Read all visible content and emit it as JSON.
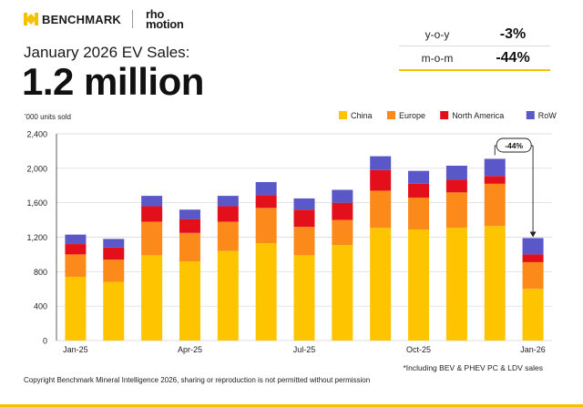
{
  "header": {
    "brand": "BENCHMARK",
    "partner_line1": "rho",
    "partner_line2": "motion"
  },
  "title": {
    "subtitle": "January 2026 EV Sales:",
    "headline": "1.2 million"
  },
  "kpis": [
    {
      "label": "y-o-y",
      "value": "-3%"
    },
    {
      "label": "m-o-m",
      "value": "-44%"
    }
  ],
  "colors": {
    "China": "#ffc400",
    "Europe": "#fb8a1a",
    "North America": "#e3101b",
    "RoW": "#5a58c8",
    "brand_yellow": "#f5c200"
  },
  "chart_data": {
    "type": "bar",
    "stacked": true,
    "title": "",
    "xlabel": "",
    "ylabel": "'000 units sold",
    "ylim": [
      0,
      2400
    ],
    "yticks": [
      0,
      400,
      800,
      1200,
      1600,
      2000,
      2400
    ],
    "ytick_labels": [
      "0",
      "400",
      "800",
      "1,200",
      "1,600",
      "2,000",
      "2,400"
    ],
    "categories": [
      "Jan-25",
      "Feb-25",
      "Mar-25",
      "Apr-25",
      "May-25",
      "Jun-25",
      "Jul-25",
      "Aug-25",
      "Sep-25",
      "Oct-25",
      "Nov-25",
      "Dec-25",
      "Jan-26"
    ],
    "xtick_labels": [
      "Jan-25",
      "",
      "",
      "Apr-25",
      "",
      "",
      "Jul-25",
      "",
      "",
      "Oct-25",
      "",
      "",
      "Jan-26"
    ],
    "series": [
      {
        "name": "China",
        "values": [
          740,
          680,
          990,
          920,
          1040,
          1130,
          990,
          1110,
          1310,
          1290,
          1310,
          1330,
          600
        ]
      },
      {
        "name": "Europe",
        "values": [
          260,
          260,
          390,
          330,
          340,
          410,
          330,
          290,
          430,
          370,
          410,
          490,
          310
        ]
      },
      {
        "name": "North America",
        "values": [
          120,
          140,
          180,
          160,
          180,
          150,
          200,
          200,
          240,
          160,
          150,
          90,
          90
        ]
      },
      {
        "name": "RoW",
        "values": [
          110,
          100,
          120,
          110,
          120,
          150,
          130,
          150,
          160,
          150,
          160,
          200,
          190
        ]
      }
    ],
    "legend_position": "top-right",
    "annotation": {
      "text": "-44%",
      "from": "Dec-25",
      "to": "Jan-26"
    }
  },
  "footer": {
    "note": "*Including BEV & PHEV PC & LDV sales",
    "copyright": "Copyright Benchmark Mineral Intelligence 2026, sharing or reproduction is not permitted without permission"
  }
}
